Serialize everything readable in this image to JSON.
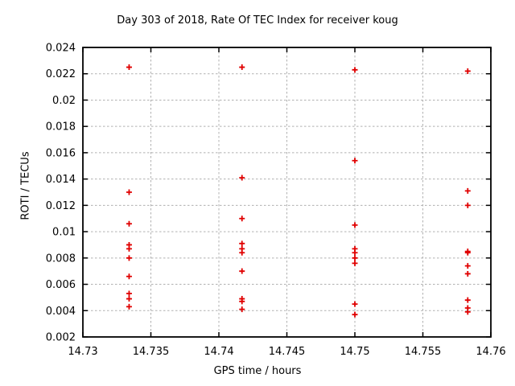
{
  "chart_data": {
    "type": "scatter",
    "title": "Day 303 of 2018, Rate Of TEC Index for receiver koug",
    "xlabel": "GPS time / hours",
    "ylabel": "ROTI / TECUs",
    "xlim": [
      14.73,
      14.76
    ],
    "ylim": [
      0.002,
      0.024
    ],
    "grid": true,
    "legend": "none",
    "x_ticks": {
      "values": [
        14.73,
        14.735,
        14.74,
        14.745,
        14.75,
        14.755,
        14.76
      ],
      "labels": [
        "14.73",
        "14.735",
        "14.74",
        "14.745",
        "14.75",
        "14.755",
        "14.76"
      ]
    },
    "y_ticks": {
      "values": [
        0.002,
        0.004,
        0.006,
        0.008,
        0.01,
        0.012,
        0.014,
        0.016,
        0.018,
        0.02,
        0.022,
        0.024
      ],
      "labels": [
        "0.002",
        "0.004",
        "0.006",
        "0.008",
        "0.01",
        "0.012",
        "0.014",
        "0.016",
        "0.018",
        "0.02",
        "0.022",
        "0.024"
      ]
    },
    "series": [
      {
        "name": "ROTI",
        "marker": "plus",
        "color": "#e00000",
        "points": [
          [
            14.7334,
            0.0225
          ],
          [
            14.7334,
            0.013
          ],
          [
            14.7334,
            0.0106
          ],
          [
            14.7334,
            0.009
          ],
          [
            14.7334,
            0.0087
          ],
          [
            14.7334,
            0.008
          ],
          [
            14.7334,
            0.0066
          ],
          [
            14.7334,
            0.0053
          ],
          [
            14.7334,
            0.0049
          ],
          [
            14.7334,
            0.0043
          ],
          [
            14.7417,
            0.0225
          ],
          [
            14.7417,
            0.0141
          ],
          [
            14.7417,
            0.011
          ],
          [
            14.7417,
            0.0091
          ],
          [
            14.7417,
            0.0087
          ],
          [
            14.7417,
            0.0084
          ],
          [
            14.7417,
            0.007
          ],
          [
            14.7417,
            0.0049
          ],
          [
            14.7417,
            0.0047
          ],
          [
            14.7417,
            0.0041
          ],
          [
            14.75,
            0.0223
          ],
          [
            14.75,
            0.0154
          ],
          [
            14.75,
            0.0105
          ],
          [
            14.75,
            0.0087
          ],
          [
            14.75,
            0.0084
          ],
          [
            14.75,
            0.008
          ],
          [
            14.75,
            0.0076
          ],
          [
            14.75,
            0.0045
          ],
          [
            14.75,
            0.0037
          ],
          [
            14.7583,
            0.0222
          ],
          [
            14.7583,
            0.0131
          ],
          [
            14.7583,
            0.012
          ],
          [
            14.7583,
            0.0085
          ],
          [
            14.7583,
            0.0084
          ],
          [
            14.7583,
            0.0074
          ],
          [
            14.7583,
            0.0068
          ],
          [
            14.7583,
            0.0048
          ],
          [
            14.7583,
            0.0042
          ],
          [
            14.7583,
            0.0039
          ]
        ]
      }
    ]
  }
}
